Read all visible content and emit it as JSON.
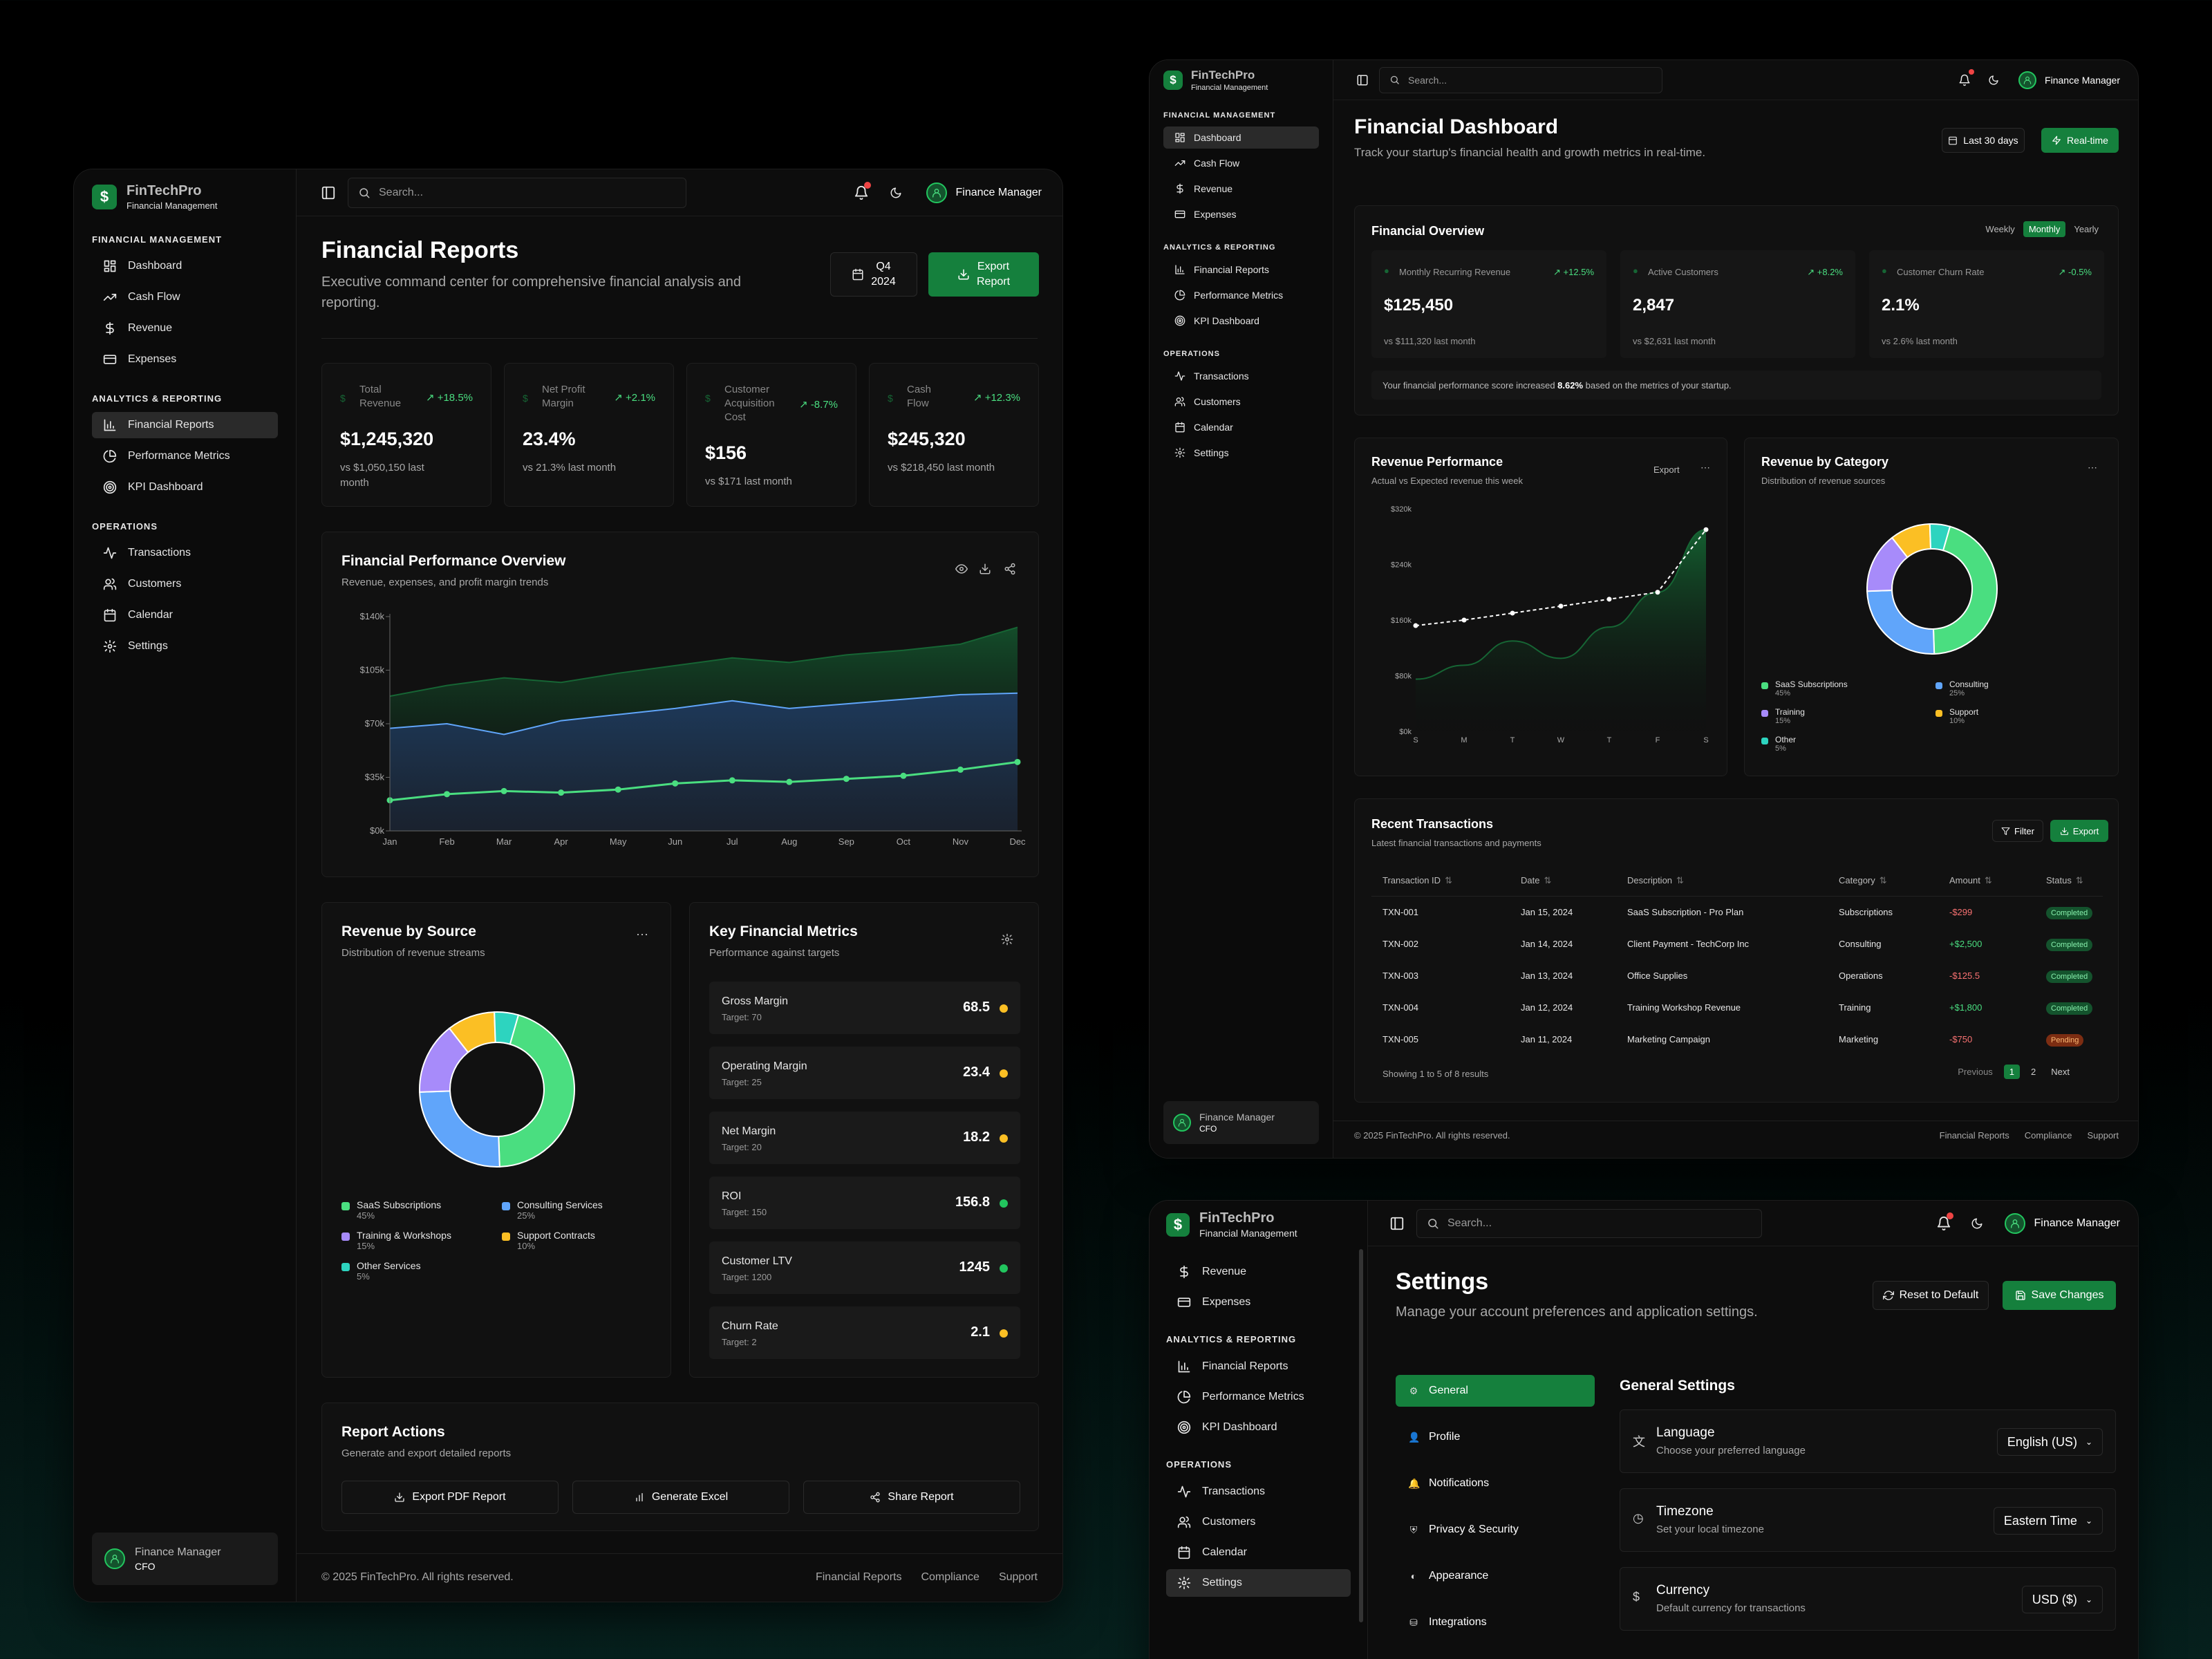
{
  "brand": {
    "name": "FinTechPro",
    "tagline": "Financial Management"
  },
  "common": {
    "search_placeholder": "Search...",
    "user_name": "Finance Manager",
    "user_role": "CFO",
    "copyright": "© 2025 FinTechPro. All rights reserved.",
    "footer_links": [
      "Financial Reports",
      "Compliance",
      "Support"
    ]
  },
  "nav": {
    "sec1": "FINANCIAL MANAGEMENT",
    "sec2": "ANALYTICS & REPORTING",
    "sec3": "OPERATIONS",
    "dashboard": "Dashboard",
    "cashflow": "Cash Flow",
    "revenue": "Revenue",
    "expenses": "Expenses",
    "reports": "Financial Reports",
    "performance": "Performance Metrics",
    "kpi": "KPI Dashboard",
    "transactions": "Transactions",
    "customers": "Customers",
    "calendar": "Calendar",
    "settings": "Settings"
  },
  "reports": {
    "title": "Financial Reports",
    "subtitle": "Executive command center for comprehensive financial analysis and reporting.",
    "period_line1": "Q4",
    "period_line2": "2024",
    "export_line1": "Export",
    "export_line2": "Report",
    "stats": [
      {
        "label1": "Total",
        "label2": "Revenue",
        "label3": "",
        "change": "+18.5%",
        "value": "$1,245,320",
        "cmp1": "vs $1,050,150 last",
        "cmp2": "month"
      },
      {
        "label1": "Net Profit",
        "label2": "Margin",
        "label3": "",
        "change": "+2.1%",
        "value": "23.4%",
        "cmp1": "vs 21.3% last month",
        "cmp2": ""
      },
      {
        "label1": "Customer",
        "label2": "Acquisition",
        "label3": "Cost",
        "change": "-8.7%",
        "value": "$156",
        "cmp1": "vs $171 last month",
        "cmp2": ""
      },
      {
        "label1": "Cash",
        "label2": "Flow",
        "label3": "",
        "change": "+12.3%",
        "value": "$245,320",
        "cmp1": "vs $218,450 last month",
        "cmp2": ""
      }
    ],
    "perf_title": "Financial Performance Overview",
    "perf_sub": "Revenue, expenses, and profit margin trends",
    "source_title": "Revenue by Source",
    "source_sub": "Distribution of revenue streams",
    "source_legend": [
      {
        "name": "SaaS Subscriptions",
        "pct": "45%",
        "color": "#4ade80"
      },
      {
        "name": "Consulting Services",
        "pct": "25%",
        "color": "#60a5fa"
      },
      {
        "name": "Training & Workshops",
        "pct": "15%",
        "color": "#a78bfa"
      },
      {
        "name": "Support Contracts",
        "pct": "10%",
        "color": "#fbbf24"
      },
      {
        "name": "Other Services",
        "pct": "5%",
        "color": "#2dd4bf"
      }
    ],
    "metrics_title": "Key Financial Metrics",
    "metrics_sub": "Performance against targets",
    "metrics": [
      {
        "name": "Gross Margin",
        "target": "Target: 70",
        "value": "68.5",
        "status": "#fbbf24"
      },
      {
        "name": "Operating Margin",
        "target": "Target: 25",
        "value": "23.4",
        "status": "#fbbf24"
      },
      {
        "name": "Net Margin",
        "target": "Target: 20",
        "value": "18.2",
        "status": "#fbbf24"
      },
      {
        "name": "ROI",
        "target": "Target: 150",
        "value": "156.8",
        "status": "#22c55e"
      },
      {
        "name": "Customer LTV",
        "target": "Target: 1200",
        "value": "1245",
        "status": "#22c55e"
      },
      {
        "name": "Churn Rate",
        "target": "Target: 2",
        "value": "2.1",
        "status": "#fbbf24"
      }
    ],
    "actions_title": "Report Actions",
    "actions_sub": "Generate and export detailed reports",
    "action_pdf": "Export PDF Report",
    "action_excel": "Generate Excel",
    "action_share": "Share Report"
  },
  "dashboard": {
    "title": "Financial Dashboard",
    "subtitle": "Track your startup's financial health and growth metrics in real-time.",
    "range": "Last 30 days",
    "realtime": "Real-time",
    "overview_title": "Financial Overview",
    "periods": [
      "Weekly",
      "Monthly",
      "Yearly"
    ],
    "kpis": [
      {
        "label": "Monthly Recurring Revenue",
        "change": "+12.5%",
        "value": "$125,450",
        "cmp": "vs $111,320 last month"
      },
      {
        "label": "Active Customers",
        "change": "+8.2%",
        "value": "2,847",
        "cmp": "vs $2,631 last month"
      },
      {
        "label": "Customer Churn Rate",
        "change": "-0.5%",
        "value": "2.1%",
        "cmp": "vs 2.6% last month"
      }
    ],
    "score_pre": "Your financial performance score increased ",
    "score_val": "8.62%",
    "score_post": " based on the metrics of your startup.",
    "revperf_title": "Revenue Performance",
    "revperf_sub": "Actual vs Expected revenue this week",
    "export": "Export",
    "bycat_title": "Revenue by Category",
    "bycat_sub": "Distribution of revenue sources",
    "cat_legend": [
      {
        "name": "SaaS Subscriptions",
        "pct": "45%",
        "color": "#4ade80"
      },
      {
        "name": "Consulting",
        "pct": "25%",
        "color": "#60a5fa"
      },
      {
        "name": "Training",
        "pct": "15%",
        "color": "#a78bfa"
      },
      {
        "name": "Support",
        "pct": "10%",
        "color": "#fbbf24"
      },
      {
        "name": "Other",
        "pct": "5%",
        "color": "#2dd4bf"
      }
    ],
    "tx_title": "Recent Transactions",
    "tx_sub": "Latest financial transactions and payments",
    "filter": "Filter",
    "tx_headers": [
      "Transaction ID",
      "Date",
      "Description",
      "Category",
      "Amount",
      "Status"
    ],
    "tx_rows": [
      {
        "id": "TXN-001",
        "date": "Jan 15, 2024",
        "desc": "SaaS Subscription - Pro Plan",
        "cat": "Subscriptions",
        "amount": "-$299",
        "neg": true,
        "status": "Completed"
      },
      {
        "id": "TXN-002",
        "date": "Jan 14, 2024",
        "desc": "Client Payment - TechCorp Inc",
        "cat": "Consulting",
        "amount": "+$2,500",
        "neg": false,
        "status": "Completed"
      },
      {
        "id": "TXN-003",
        "date": "Jan 13, 2024",
        "desc": "Office Supplies",
        "cat": "Operations",
        "amount": "-$125.5",
        "neg": true,
        "status": "Completed"
      },
      {
        "id": "TXN-004",
        "date": "Jan 12, 2024",
        "desc": "Training Workshop Revenue",
        "cat": "Training",
        "amount": "+$1,800",
        "neg": false,
        "status": "Completed"
      },
      {
        "id": "TXN-005",
        "date": "Jan 11, 2024",
        "desc": "Marketing Campaign",
        "cat": "Marketing",
        "amount": "-$750",
        "neg": true,
        "status": "Pending"
      }
    ],
    "showing": "Showing 1 to 5 of 8 results",
    "prev": "Previous",
    "page1": "1",
    "page2": "2",
    "next": "Next"
  },
  "settings": {
    "title": "Settings",
    "subtitle": "Manage your account preferences and application settings.",
    "reset": "Reset to Default",
    "save": "Save Changes",
    "tabs": [
      "General",
      "Profile",
      "Notifications",
      "Privacy & Security",
      "Appearance",
      "Integrations"
    ],
    "section": "General Settings",
    "rows": [
      {
        "label": "Language",
        "desc": "Choose your preferred language",
        "value": "English (US)"
      },
      {
        "label": "Timezone",
        "desc": "Set your local timezone",
        "value": "Eastern Time"
      },
      {
        "label": "Currency",
        "desc": "Default currency for transactions",
        "value": "USD ($)"
      }
    ]
  },
  "chart_data": [
    {
      "type": "area",
      "title": "Financial Performance Overview",
      "x": [
        "Jan",
        "Feb",
        "Mar",
        "Apr",
        "May",
        "Jun",
        "Jul",
        "Aug",
        "Sep",
        "Oct",
        "Nov",
        "Dec"
      ],
      "yticks": [
        "$0k",
        "$35k",
        "$70k",
        "$105k",
        "$140k"
      ],
      "ylim": [
        0,
        140000
      ],
      "series": [
        {
          "values": [
            88000,
            95000,
            100000,
            97000,
            103000,
            108000,
            113000,
            110000,
            115000,
            118000,
            122000,
            133000
          ],
          "color": "#166534"
        },
        {
          "values": [
            67000,
            70000,
            63000,
            72000,
            76000,
            80000,
            85000,
            80000,
            83000,
            86000,
            89000,
            90000
          ],
          "color": "#60a5fa"
        },
        {
          "values": [
            20000,
            24000,
            26000,
            25000,
            27000,
            31000,
            33000,
            32000,
            34000,
            36000,
            40000,
            45000
          ],
          "color": "#4ade80"
        }
      ]
    },
    {
      "type": "pie",
      "title": "Revenue by Source",
      "labels": [
        "SaaS Subscriptions",
        "Consulting Services",
        "Training & Workshops",
        "Support Contracts",
        "Other Services"
      ],
      "values": [
        45,
        25,
        15,
        10,
        5
      ]
    },
    {
      "type": "line",
      "title": "Revenue Performance",
      "x": [
        "S",
        "M",
        "T",
        "W",
        "T",
        "F",
        "S"
      ],
      "yticks": [
        "$0k",
        "$80k",
        "$160k",
        "$240k",
        "$320k"
      ],
      "ylim": [
        0,
        320000
      ],
      "series": [
        {
          "values": [
            75000,
            95000,
            130000,
            105000,
            150000,
            200000,
            290000
          ],
          "color": "#166534"
        },
        {
          "values": [
            152000,
            160000,
            170000,
            180000,
            190000,
            200000,
            290000
          ],
          "color": "#ffffff"
        }
      ]
    },
    {
      "type": "pie",
      "title": "Revenue by Category",
      "labels": [
        "SaaS Subscriptions",
        "Consulting",
        "Training",
        "Support",
        "Other"
      ],
      "values": [
        45,
        25,
        15,
        10,
        5
      ]
    }
  ]
}
